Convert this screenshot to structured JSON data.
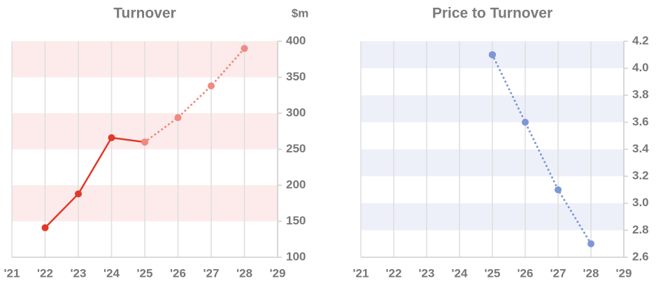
{
  "chart_data": [
    {
      "type": "line",
      "title": "Turnover",
      "unit_label": "$m",
      "categories": [
        "'21",
        "'22",
        "'23",
        "'24",
        "'25",
        "'26",
        "'27",
        "'28",
        "'29"
      ],
      "series": [
        {
          "color": "#e0392b",
          "values": [
            null,
            141,
            188,
            266,
            260,
            null,
            null,
            null,
            null
          ]
        },
        {
          "color": "#ef8a80",
          "dashed": true,
          "values": [
            null,
            null,
            null,
            null,
            260,
            294,
            338,
            390,
            null
          ]
        }
      ],
      "ylim": [
        100,
        400
      ],
      "yticks": [
        100,
        150,
        200,
        250,
        300,
        350,
        400
      ],
      "bands": true,
      "band_color": "#fcebea"
    },
    {
      "type": "line",
      "title": "Price to Turnover",
      "categories": [
        "'21",
        "'22",
        "'23",
        "'24",
        "'25",
        "'26",
        "'27",
        "'28",
        "'29"
      ],
      "series": [
        {
          "color": "#2547b4",
          "values": [
            null,
            null,
            null,
            null,
            4.1,
            null,
            null,
            null,
            null
          ]
        },
        {
          "color": "#7d97d6",
          "dashed": true,
          "values": [
            null,
            null,
            null,
            null,
            4.1,
            3.6,
            3.1,
            2.7,
            null
          ]
        }
      ],
      "ylim": [
        2.6,
        4.2
      ],
      "yticks": [
        2.6,
        2.8,
        {
          "value": 3.0,
          "label": "3.0"
        },
        3.2,
        3.4,
        3.6,
        3.8,
        {
          "value": 4.0,
          "label": "4.0"
        },
        4.2
      ],
      "bands": true,
      "band_color": "#edf0f8"
    }
  ]
}
